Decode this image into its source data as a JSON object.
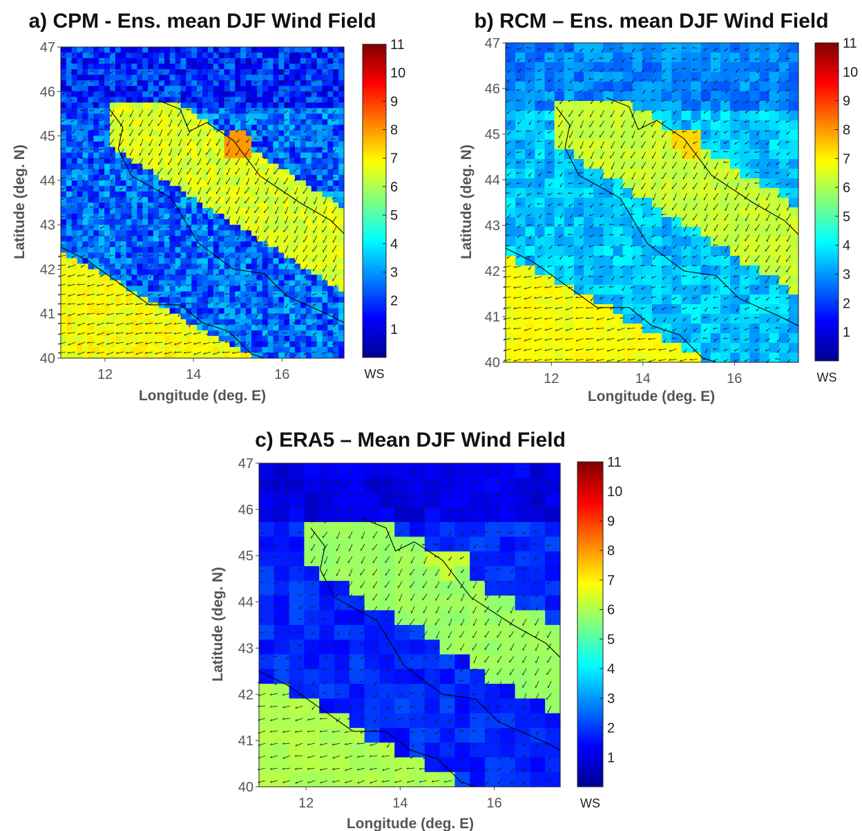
{
  "chart_data": [
    {
      "id": "a",
      "type": "heatmap",
      "title": "a) CPM - Ens. mean DJF Wind Field",
      "xlabel": "Longitude (deg. E)",
      "ylabel": "Latitude (deg. N)",
      "xlim": [
        11,
        17.4
      ],
      "ylim": [
        40,
        47
      ],
      "xticks": [
        "12",
        "14",
        "16"
      ],
      "yticks": [
        "40",
        "41",
        "42",
        "43",
        "44",
        "45",
        "46",
        "47"
      ],
      "colorbar": {
        "label": "WS",
        "ticks": [
          "1",
          "2",
          "3",
          "4",
          "5",
          "6",
          "7",
          "8",
          "9",
          "10",
          "11"
        ],
        "range": [
          0,
          11
        ]
      },
      "resolution": "fine",
      "approx_values": {
        "land": 2.5,
        "adriatic_sea": 6.5,
        "tyrrhenian_sea": 6.8,
        "peak_near_15E_44.8N": 8.5
      }
    },
    {
      "id": "b",
      "type": "heatmap",
      "title": "b) RCM – Ens. mean DJF Wind Field",
      "xlabel": "Longitude (deg. E)",
      "ylabel": "Latitude (deg. N)",
      "xlim": [
        11,
        17.4
      ],
      "ylim": [
        40,
        47
      ],
      "xticks": [
        "12",
        "14",
        "16"
      ],
      "yticks": [
        "40",
        "41",
        "42",
        "43",
        "44",
        "45",
        "46",
        "47"
      ],
      "colorbar": {
        "label": "WS",
        "ticks": [
          "1",
          "2",
          "3",
          "4",
          "5",
          "6",
          "7",
          "8",
          "9",
          "10",
          "11"
        ],
        "range": [
          0,
          11
        ]
      },
      "resolution": "medium",
      "approx_values": {
        "land": 3.5,
        "adriatic_sea": 6.3,
        "tyrrhenian_sea": 6.8,
        "peak_near_15E_44.8N": 7.8
      }
    },
    {
      "id": "c",
      "type": "heatmap",
      "title": "c) ERA5 – Mean DJF Wind Field",
      "xlabel": "Longitude (deg. E)",
      "ylabel": "Latitude (deg. N)",
      "xlim": [
        11,
        17.4
      ],
      "ylim": [
        40,
        47
      ],
      "xticks": [
        "12",
        "14",
        "16"
      ],
      "yticks": [
        "40",
        "41",
        "42",
        "43",
        "44",
        "45",
        "46",
        "47"
      ],
      "colorbar": {
        "label": "WS",
        "ticks": [
          "1",
          "2",
          "3",
          "4",
          "5",
          "6",
          "7",
          "8",
          "9",
          "10",
          "11"
        ],
        "range": [
          0,
          11
        ]
      },
      "resolution": "coarse",
      "approx_values": {
        "land": 1.8,
        "adriatic_sea": 5.8,
        "tyrrhenian_sea": 6.0,
        "peak_near_14.3E_44.8N": 6.8
      }
    }
  ]
}
